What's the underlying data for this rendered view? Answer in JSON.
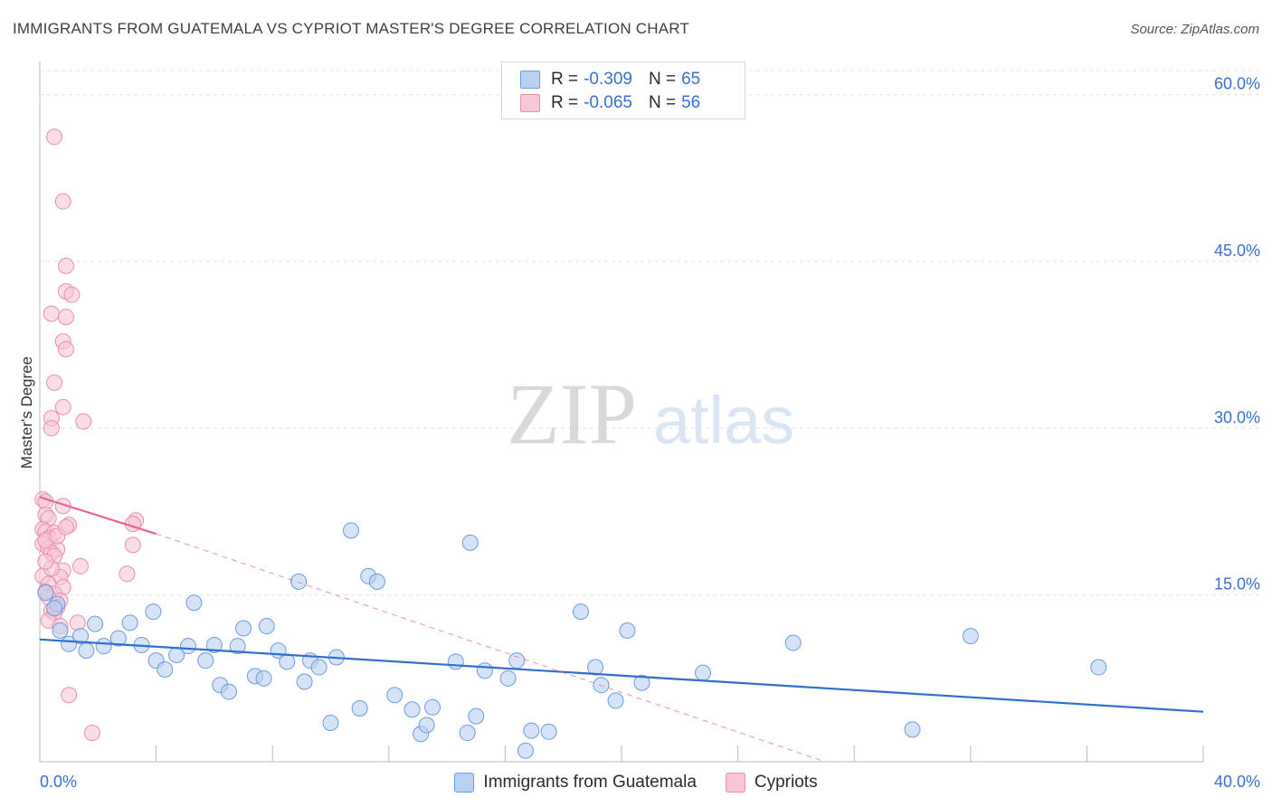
{
  "title": "IMMIGRANTS FROM GUATEMALA VS CYPRIOT MASTER'S DEGREE CORRELATION CHART",
  "source": "Source: ZipAtlas.com",
  "watermark": {
    "zip": "ZIP",
    "atlas": "atlas"
  },
  "legend": {
    "r_label": "R =",
    "n_label": "N =",
    "rows": [
      {
        "r": "-0.309",
        "n": "65",
        "fill": "#b9d1f3",
        "stroke": "#6f9bdc"
      },
      {
        "r": "-0.065",
        "n": "56",
        "fill": "#f9c6d5",
        "stroke": "#ea8fac"
      }
    ]
  },
  "chart_data": {
    "type": "scatter",
    "title": "IMMIGRANTS FROM GUATEMALA VS CYPRIOT MASTER'S DEGREE CORRELATION CHART",
    "xlabel": "",
    "ylabel": "Master's Degree",
    "xlim": [
      0,
      40
    ],
    "ylim": [
      0,
      62
    ],
    "x_tick_labels": [
      "0.0%",
      "40.0%"
    ],
    "y_ticks": [
      15,
      30,
      45,
      60
    ],
    "y_tick_labels": [
      "15.0%",
      "30.0%",
      "45.0%",
      "60.0%"
    ],
    "grid": true,
    "series": [
      {
        "name": "Immigrants from Guatemala",
        "color": "#6f9bdc",
        "fill": "#b9d1f3",
        "line_color": "#2e6fd0",
        "trend": {
          "x0": 0,
          "y0": 11.0,
          "x1": 40,
          "y1": 4.5,
          "dashed_to": null
        },
        "points": [
          [
            0.2,
            15.2
          ],
          [
            0.6,
            14.2
          ],
          [
            0.7,
            11.8
          ],
          [
            1.0,
            10.6
          ],
          [
            1.4,
            11.3
          ],
          [
            1.6,
            10.0
          ],
          [
            1.9,
            12.4
          ],
          [
            2.2,
            10.4
          ],
          [
            2.7,
            11.1
          ],
          [
            3.1,
            12.5
          ],
          [
            3.5,
            10.5
          ],
          [
            3.9,
            13.5
          ],
          [
            4.0,
            9.1
          ],
          [
            4.3,
            8.3
          ],
          [
            4.7,
            9.6
          ],
          [
            5.1,
            10.4
          ],
          [
            5.3,
            14.3
          ],
          [
            5.7,
            9.1
          ],
          [
            6.0,
            10.5
          ],
          [
            6.2,
            6.9
          ],
          [
            6.5,
            6.3
          ],
          [
            6.8,
            10.4
          ],
          [
            7.0,
            12.0
          ],
          [
            7.4,
            7.7
          ],
          [
            7.7,
            7.5
          ],
          [
            7.8,
            12.2
          ],
          [
            8.2,
            10.0
          ],
          [
            8.5,
            9.0
          ],
          [
            8.9,
            16.2
          ],
          [
            9.1,
            7.2
          ],
          [
            9.3,
            9.1
          ],
          [
            9.6,
            8.5
          ],
          [
            10.0,
            3.5
          ],
          [
            10.2,
            9.4
          ],
          [
            10.7,
            20.8
          ],
          [
            11.0,
            4.8
          ],
          [
            11.3,
            16.7
          ],
          [
            11.6,
            16.2
          ],
          [
            12.2,
            6.0
          ],
          [
            12.8,
            4.7
          ],
          [
            13.1,
            2.5
          ],
          [
            13.3,
            3.3
          ],
          [
            13.5,
            4.9
          ],
          [
            14.3,
            9.0
          ],
          [
            14.7,
            2.6
          ],
          [
            14.8,
            19.7
          ],
          [
            15.0,
            4.1
          ],
          [
            15.3,
            8.2
          ],
          [
            16.1,
            7.5
          ],
          [
            16.4,
            9.1
          ],
          [
            16.7,
            1.0
          ],
          [
            16.9,
            2.8
          ],
          [
            17.5,
            2.7
          ],
          [
            18.6,
            13.5
          ],
          [
            19.1,
            8.5
          ],
          [
            19.3,
            6.9
          ],
          [
            19.8,
            5.5
          ],
          [
            20.2,
            11.8
          ],
          [
            20.7,
            7.1
          ],
          [
            22.8,
            8.0
          ],
          [
            25.9,
            10.7
          ],
          [
            32.0,
            11.3
          ],
          [
            30.0,
            2.9
          ],
          [
            36.4,
            8.5
          ],
          [
            0.5,
            13.8
          ]
        ]
      },
      {
        "name": "Cypriots",
        "color": "#ea8fac",
        "fill": "#f9c6d5",
        "line_color": "#e86390",
        "trend": {
          "x0": 0,
          "y0": 23.8,
          "x1": 4.0,
          "y1": 20.5,
          "dashed_to": [
            27.0,
            0
          ]
        },
        "points": [
          [
            0.5,
            56.2
          ],
          [
            0.8,
            50.4
          ],
          [
            0.9,
            44.6
          ],
          [
            0.9,
            42.3
          ],
          [
            1.1,
            42.0
          ],
          [
            0.4,
            40.3
          ],
          [
            0.9,
            40.0
          ],
          [
            0.8,
            37.8
          ],
          [
            0.9,
            37.1
          ],
          [
            0.5,
            34.1
          ],
          [
            0.8,
            31.9
          ],
          [
            0.4,
            30.9
          ],
          [
            1.5,
            30.6
          ],
          [
            0.4,
            30.0
          ],
          [
            0.1,
            23.6
          ],
          [
            0.2,
            23.4
          ],
          [
            0.8,
            23.0
          ],
          [
            0.2,
            22.2
          ],
          [
            0.3,
            21.9
          ],
          [
            3.3,
            21.7
          ],
          [
            1.0,
            21.3
          ],
          [
            3.2,
            21.4
          ],
          [
            0.1,
            20.9
          ],
          [
            0.2,
            20.7
          ],
          [
            0.5,
            20.6
          ],
          [
            0.3,
            20.1
          ],
          [
            0.1,
            19.6
          ],
          [
            3.2,
            19.5
          ],
          [
            0.3,
            19.2
          ],
          [
            0.6,
            19.1
          ],
          [
            0.4,
            18.8
          ],
          [
            0.5,
            18.5
          ],
          [
            1.4,
            17.6
          ],
          [
            0.8,
            17.2
          ],
          [
            3.0,
            16.9
          ],
          [
            0.1,
            16.7
          ],
          [
            0.7,
            16.6
          ],
          [
            0.3,
            16.0
          ],
          [
            0.8,
            15.7
          ],
          [
            0.2,
            15.3
          ],
          [
            0.5,
            15.1
          ],
          [
            0.7,
            14.5
          ],
          [
            0.6,
            13.9
          ],
          [
            0.4,
            13.6
          ],
          [
            0.5,
            13.4
          ],
          [
            0.3,
            12.7
          ],
          [
            1.3,
            12.5
          ],
          [
            0.7,
            12.2
          ],
          [
            1.0,
            6.0
          ],
          [
            1.8,
            2.6
          ],
          [
            0.2,
            19.9
          ],
          [
            0.6,
            20.3
          ],
          [
            0.4,
            17.4
          ],
          [
            0.9,
            21.1
          ],
          [
            0.3,
            14.8
          ],
          [
            0.2,
            18.0
          ]
        ]
      }
    ]
  }
}
